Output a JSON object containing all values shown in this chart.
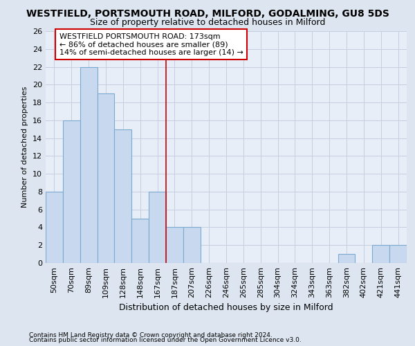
{
  "title": "WESTFIELD, PORTSMOUTH ROAD, MILFORD, GODALMING, GU8 5DS",
  "subtitle": "Size of property relative to detached houses in Milford",
  "xlabel": "Distribution of detached houses by size in Milford",
  "ylabel": "Number of detached properties",
  "categories": [
    "50sqm",
    "70sqm",
    "89sqm",
    "109sqm",
    "128sqm",
    "148sqm",
    "167sqm",
    "187sqm",
    "207sqm",
    "226sqm",
    "246sqm",
    "265sqm",
    "285sqm",
    "304sqm",
    "324sqm",
    "343sqm",
    "363sqm",
    "382sqm",
    "402sqm",
    "421sqm",
    "441sqm"
  ],
  "values": [
    8,
    16,
    22,
    19,
    15,
    5,
    8,
    4,
    4,
    0,
    0,
    0,
    0,
    0,
    0,
    0,
    0,
    1,
    0,
    2,
    2
  ],
  "bar_color": "#c8d8ee",
  "bar_edge_color": "#7aaad0",
  "vertical_line_index": 6,
  "vertical_line_color": "#cc0000",
  "annotation_text": "WESTFIELD PORTSMOUTH ROAD: 173sqm\n← 86% of detached houses are smaller (89)\n14% of semi-detached houses are larger (14) →",
  "annotation_box_color": "white",
  "annotation_box_edge_color": "#cc0000",
  "ylim": [
    0,
    26
  ],
  "yticks": [
    0,
    2,
    4,
    6,
    8,
    10,
    12,
    14,
    16,
    18,
    20,
    22,
    24,
    26
  ],
  "footer1": "Contains HM Land Registry data © Crown copyright and database right 2024.",
  "footer2": "Contains public sector information licensed under the Open Government Licence v3.0.",
  "bg_color": "#dde6f0",
  "plot_bg_color": "#e8eef7",
  "grid_color": "#c5cfe0",
  "title_fontsize": 10,
  "subtitle_fontsize": 9,
  "xlabel_fontsize": 9,
  "ylabel_fontsize": 8,
  "tick_fontsize": 8,
  "annotation_fontsize": 8,
  "footer_fontsize": 6.5
}
